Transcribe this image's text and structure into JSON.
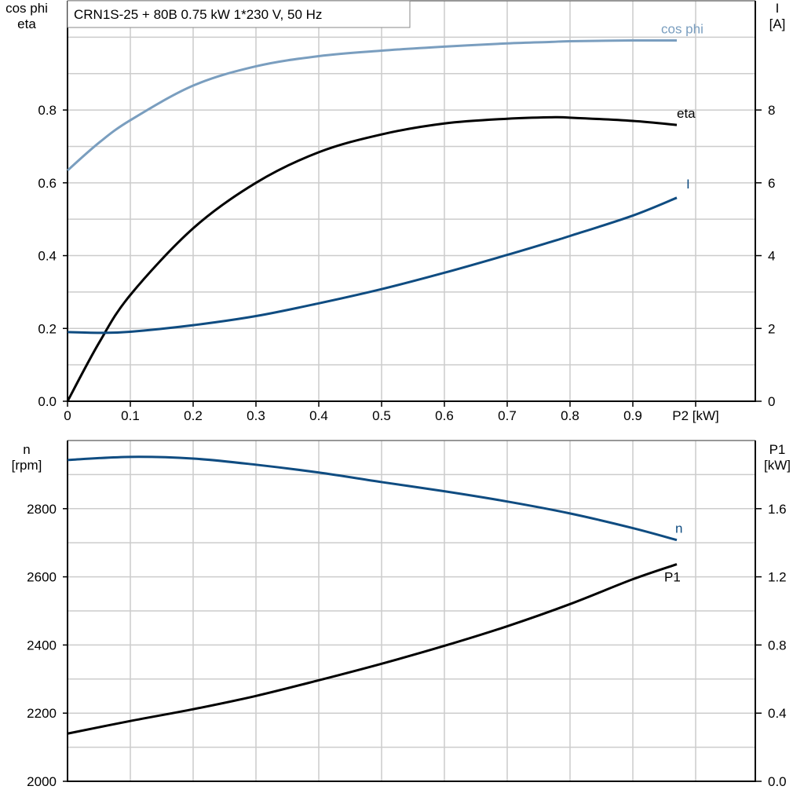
{
  "title": "CRN1S-25 + 80B   0.75 kW   1*230 V, 50 Hz",
  "colors": {
    "cos_phi": "#7a9ebf",
    "eta": "#000000",
    "I": "#0f4c81",
    "n": "#0f4c81",
    "P1": "#000000",
    "grid": "#cccccc"
  },
  "chart_data": [
    {
      "type": "line",
      "xlabel": "P2 [kW]",
      "xlim": [
        0,
        1.095
      ],
      "xticks": [
        "0",
        "0.1",
        "0.2",
        "0.3",
        "0.4",
        "0.5",
        "0.6",
        "0.7",
        "0.8",
        "0.9"
      ],
      "ylabel_left": [
        "cos phi",
        "eta"
      ],
      "ylim_left": [
        0,
        1.1
      ],
      "yticks_left": [
        "0.0",
        "0.2",
        "0.4",
        "0.6",
        "0.8"
      ],
      "ylabel_right": [
        "I",
        "[A]"
      ],
      "ylim_right": [
        0,
        11
      ],
      "yticks_right": [
        "0",
        "2",
        "4",
        "6",
        "8"
      ],
      "grid": true,
      "x": [
        0,
        0.05,
        0.1,
        0.2,
        0.3,
        0.4,
        0.5,
        0.6,
        0.7,
        0.77,
        0.8,
        0.9,
        0.97
      ],
      "series": [
        {
          "name": "cos phi",
          "axis": "left",
          "color_key": "cos_phi",
          "values": [
            0.634,
            0.71,
            0.772,
            0.867,
            0.92,
            0.948,
            0.963,
            0.974,
            0.983,
            0.987,
            0.989,
            0.991,
            0.991
          ]
        },
        {
          "name": "eta",
          "axis": "left",
          "color_key": "eta",
          "values": [
            0,
            0.16,
            0.292,
            0.475,
            0.6,
            0.684,
            0.733,
            0.763,
            0.776,
            0.78,
            0.779,
            0.77,
            0.759
          ]
        },
        {
          "name": "I",
          "axis": "right",
          "color_key": "I",
          "values": [
            1.9,
            1.88,
            1.91,
            2.09,
            2.34,
            2.69,
            3.08,
            3.53,
            4.02,
            4.38,
            4.54,
            5.1,
            5.59
          ]
        }
      ]
    },
    {
      "type": "line",
      "xlim": [
        0,
        1.095
      ],
      "ylabel_left": [
        "n",
        "[rpm]"
      ],
      "ylim_left": [
        2000,
        3000
      ],
      "yticks_left": [
        "2000",
        "2200",
        "2400",
        "2600",
        "2800"
      ],
      "ylabel_right": [
        "P1",
        "[kW]"
      ],
      "ylim_right": [
        0,
        2.0
      ],
      "yticks_right": [
        "0.0",
        "0.4",
        "0.8",
        "1.2",
        "1.6"
      ],
      "grid": true,
      "x": [
        0,
        0.1,
        0.2,
        0.3,
        0.4,
        0.5,
        0.6,
        0.7,
        0.8,
        0.9,
        0.97
      ],
      "series": [
        {
          "name": "n",
          "axis": "left",
          "color_key": "n",
          "values": [
            2943,
            2952,
            2947,
            2929,
            2906,
            2878,
            2851,
            2821,
            2786,
            2743,
            2708
          ]
        },
        {
          "name": "P1",
          "axis": "right",
          "color_key": "P1",
          "values": [
            0.28,
            0.354,
            0.423,
            0.501,
            0.593,
            0.69,
            0.795,
            0.91,
            1.04,
            1.186,
            1.274
          ]
        }
      ]
    }
  ]
}
